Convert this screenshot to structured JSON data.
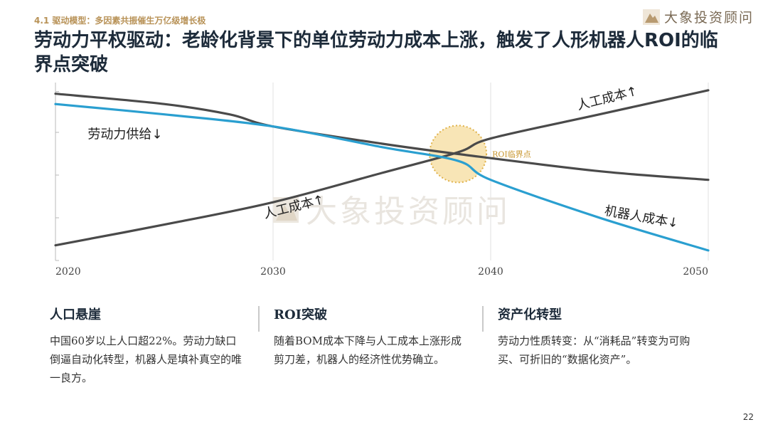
{
  "header": {
    "section_tag": "4.1 驱动模型：多因素共振催生万亿级增长极",
    "title": "劳动力平权驱动：老龄化背景下的单位劳动力成本上涨，触发了人形机器人ROI的临界点突破",
    "brand": "大象投资顾问"
  },
  "colors": {
    "accent": "#b89257",
    "labor_cost": "#4a4a4a",
    "labor_supply": "#4a4a4a",
    "robot_cost": "#2a9fd0",
    "roi_circle": "#f3cf7a"
  },
  "chart_data": {
    "type": "line",
    "x_ticks": [
      "2020",
      "2030",
      "2040",
      "2050"
    ],
    "xlim": [
      2020,
      2050
    ],
    "ylim": [
      0,
      100
    ],
    "grid": "vertical",
    "series": [
      {
        "name": "人工成本↑",
        "color": "#4a4a4a",
        "x": [
          2020,
          2025,
          2030,
          2035,
          2038.5,
          2040,
          2045,
          2050
        ],
        "y": [
          8,
          20,
          33,
          50,
          62,
          70,
          84,
          98
        ]
      },
      {
        "name": "劳动力供给↓",
        "color": "#4a4a4a",
        "x": [
          2020,
          2025,
          2028,
          2030,
          2035,
          2038.5,
          2045,
          2050
        ],
        "y": [
          96,
          90,
          84,
          77,
          67,
          61,
          51,
          46
        ]
      },
      {
        "name": "机器人成本↓",
        "color": "#2a9fd0",
        "x": [
          2020,
          2025,
          2030,
          2035,
          2038.5,
          2040,
          2045,
          2050
        ],
        "y": [
          90,
          84,
          77,
          65,
          57,
          46,
          24,
          5
        ]
      }
    ],
    "curve_labels": [
      "人工成本↑",
      "劳动力供给↓",
      "人工成本↑",
      "机器人成本↓"
    ],
    "annotation": "ROI临界点",
    "annotation_point": {
      "x": 2038.5,
      "y": 61
    }
  },
  "cards": [
    {
      "title": "人口悬崖",
      "body": "中国60岁以上人口超22%。劳动力缺口倒逼自动化转型，机器人是填补真空的唯一良方。"
    },
    {
      "title": "ROI突破",
      "body": "随着BOM成本下降与人工成本上涨形成剪刀差，机器人的经济性优势确立。"
    },
    {
      "title": "资产化转型",
      "body": "劳动力性质转变：从“消耗品”转变为可购买、可折旧的“数据化资产”。"
    }
  ],
  "footer": {
    "page_number": "22"
  }
}
